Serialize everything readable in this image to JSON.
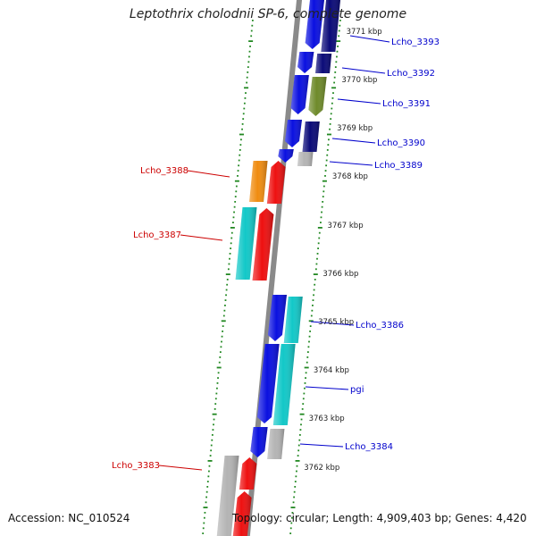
{
  "title": "Leptothrix cholodnii SP-6, complete genome",
  "footer": {
    "accession": "Accession: NC_010524",
    "summary": "Topology: circular; Length: 4,909,403 bp; Genes: 4,420"
  },
  "colors": {
    "blue": "#0a10e0",
    "navy": "#0a0a78",
    "olive": "#6e8a2a",
    "cyan": "#12c8c8",
    "red": "#ee1010",
    "orange": "#f08c10",
    "gray": "#b4b4b4",
    "ticks": "#228822",
    "backbone": "#8a8a8a",
    "label_blue": "#0000cc",
    "label_red": "#cc0000"
  },
  "kbp_labels": [
    "3771 kbp",
    "3770 kbp",
    "3769 kbp",
    "3768 kbp",
    "3767 kbp",
    "3766 kbp",
    "3765 kbp",
    "3764 kbp",
    "3763 kbp",
    "3762 kbp"
  ],
  "gene_labels": [
    {
      "text": "Lcho_3393",
      "side": "right"
    },
    {
      "text": "Lcho_3392",
      "side": "right"
    },
    {
      "text": "Lcho_3391",
      "side": "right"
    },
    {
      "text": "Lcho_3390",
      "side": "right"
    },
    {
      "text": "Lcho_3389",
      "side": "right"
    },
    {
      "text": "Lcho_3388",
      "side": "left"
    },
    {
      "text": "Lcho_3387",
      "side": "left"
    },
    {
      "text": "Lcho_3386",
      "side": "right"
    },
    {
      "text": "pgi",
      "side": "right"
    },
    {
      "text": "Lcho_3384",
      "side": "right"
    },
    {
      "text": "Lcho_3383",
      "side": "left"
    }
  ]
}
